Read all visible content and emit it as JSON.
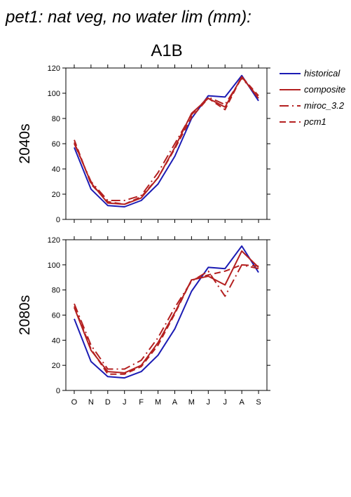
{
  "title": "pet1: nat veg, no water lim (mm):",
  "scenario": "A1B",
  "legend": {
    "placement": "right",
    "entries": [
      "historical",
      "composite",
      "miroc_3.2",
      "pcm1"
    ]
  },
  "colors": {
    "historical": "#1c1cb4",
    "composite": "#b42020",
    "miroc_3.2": "#b42020",
    "pcm1": "#b42020"
  },
  "chart_data": [
    {
      "type": "line",
      "ylabel": "2040s",
      "categories": [
        "O",
        "N",
        "D",
        "J",
        "F",
        "M",
        "A",
        "M",
        "J",
        "J",
        "A",
        "S"
      ],
      "ylim": [
        0,
        120
      ],
      "yticks": [
        0,
        20,
        40,
        60,
        80,
        100,
        120
      ],
      "grid": false,
      "series": [
        {
          "name": "historical",
          "style": "solid",
          "values": [
            57,
            24,
            11,
            10,
            15,
            28,
            50,
            80,
            98,
            97,
            114,
            94
          ]
        },
        {
          "name": "composite",
          "style": "solid",
          "values": [
            61,
            29,
            13,
            12,
            17,
            33,
            57,
            84,
            96,
            89,
            113,
            96
          ]
        },
        {
          "name": "miroc_3.2",
          "style": "dashdot",
          "values": [
            60,
            30,
            15,
            15,
            19,
            37,
            60,
            83,
            97,
            91,
            112,
            97
          ]
        },
        {
          "name": "pcm1",
          "style": "dashed",
          "values": [
            63,
            28,
            14,
            12,
            18,
            33,
            56,
            81,
            96,
            87,
            113,
            98
          ]
        }
      ]
    },
    {
      "type": "line",
      "ylabel": "2080s",
      "categories": [
        "O",
        "N",
        "D",
        "J",
        "F",
        "M",
        "A",
        "M",
        "J",
        "J",
        "A",
        "S"
      ],
      "ylim": [
        0,
        120
      ],
      "yticks": [
        0,
        20,
        40,
        60,
        80,
        100,
        120
      ],
      "grid": false,
      "series": [
        {
          "name": "historical",
          "style": "solid",
          "values": [
            57,
            23,
            11,
            10,
            15,
            28,
            49,
            79,
            98,
            97,
            115,
            94
          ]
        },
        {
          "name": "composite",
          "style": "solid",
          "values": [
            66,
            32,
            15,
            14,
            20,
            38,
            62,
            88,
            91,
            84,
            111,
            98
          ]
        },
        {
          "name": "miroc_3.2",
          "style": "dashdot",
          "values": [
            69,
            36,
            17,
            17,
            24,
            42,
            66,
            87,
            95,
            75,
            100,
            97
          ]
        },
        {
          "name": "pcm1",
          "style": "dashed",
          "values": [
            67,
            33,
            13,
            13,
            19,
            36,
            61,
            88,
            92,
            95,
            100,
            99
          ]
        }
      ]
    }
  ]
}
